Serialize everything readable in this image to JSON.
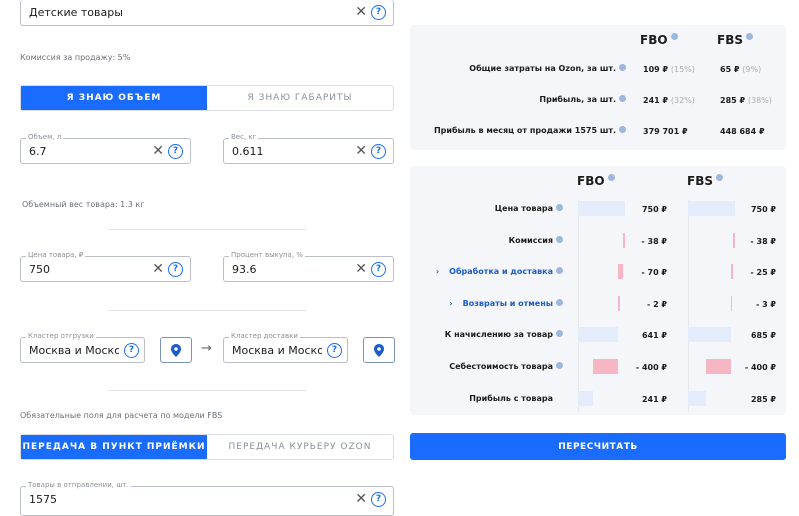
{
  "form": {
    "category": {
      "value": "Детские товары"
    },
    "commission_note": "Комиссия за продажу: 5%",
    "size_mode": {
      "options": [
        "Я ЗНАЮ ОБЪЕМ",
        "Я ЗНАЮ ГАБАРИТЫ"
      ],
      "selected": 0
    },
    "volume": {
      "label": "Объем, л",
      "value": "6.7"
    },
    "weight": {
      "label": "Вес, кг",
      "value": "0.611"
    },
    "volume_weight_note": "Объемный вес товара: 1.3 кг",
    "price": {
      "label": "Цена товара, ₽",
      "value": "750"
    },
    "buyout": {
      "label": "Процент выкупа, %",
      "value": "93.6"
    },
    "ship_cluster": {
      "label": "Кластер отгрузки",
      "value": "Москва и Московская"
    },
    "delivery_cluster": {
      "label": "Кластер доставки",
      "value": "Москва и Московская"
    },
    "fbs_note": "Обязательные поля для расчета по модели FBS",
    "fbs_mode": {
      "options": [
        "ПЕРЕДАЧА В ПУНКТ ПРИЁМКИ",
        "ПЕРЕДАЧА КУРЬЕРУ OZON"
      ],
      "selected": 0
    },
    "quantity": {
      "label": "Товары в отправлении, шт.",
      "value": "1575"
    }
  },
  "summary": {
    "columns": [
      "FBO",
      "FBS"
    ],
    "rows": [
      {
        "label": "Общие затраты на Ozon, за шт.",
        "fbo": "109 ₽",
        "fbo_pct": "(15%)",
        "fbs": "65 ₽",
        "fbs_pct": "(9%)"
      },
      {
        "label": "Прибыль, за шт.",
        "fbo": "241 ₽",
        "fbo_pct": "(32%)",
        "fbs": "285 ₽",
        "fbs_pct": "(38%)"
      },
      {
        "label": "Прибыль в месяц от продажи 1575 шт.",
        "fbo": "379 701 ₽",
        "fbo_pct": "",
        "fbs": "448 684 ₽",
        "fbs_pct": ""
      }
    ]
  },
  "breakdown": {
    "columns": [
      "FBO",
      "FBS"
    ],
    "max": 750,
    "rows": [
      {
        "label": "Цена товара",
        "type": "total",
        "link": false,
        "fbo": 750,
        "fbs": 750,
        "fbo_text": "750 ₽",
        "fbs_text": "750 ₽",
        "info": true
      },
      {
        "label": "Комиссия",
        "type": "minus",
        "link": false,
        "fbo": 38,
        "fbs": 38,
        "fbo_text": "- 38 ₽",
        "fbs_text": "- 38 ₽",
        "info": true
      },
      {
        "label": "Обработка и доставка",
        "type": "minus",
        "link": true,
        "fbo": 70,
        "fbs": 25,
        "fbo_text": "- 70 ₽",
        "fbs_text": "- 25 ₽",
        "info": true
      },
      {
        "label": "Возвраты и отмены",
        "type": "minus",
        "link": true,
        "fbo": 2,
        "fbs": 3,
        "fbo_text": "- 2 ₽",
        "fbs_text": "- 3 ₽",
        "info": true
      },
      {
        "label": "К начислению за товар",
        "type": "total",
        "link": false,
        "fbo": 641,
        "fbs": 685,
        "fbo_text": "641 ₽",
        "fbs_text": "685 ₽",
        "info": true
      },
      {
        "label": "Себестоимость товара",
        "type": "minus",
        "link": false,
        "fbo": 400,
        "fbs": 400,
        "fbo_text": "- 400 ₽",
        "fbs_text": "- 400 ₽",
        "info": true
      },
      {
        "label": "Прибыль с товара",
        "type": "total",
        "link": false,
        "fbo": 241,
        "fbs": 285,
        "fbo_text": "241 ₽",
        "fbs_text": "285 ₽",
        "info": false
      }
    ]
  },
  "recalc_button": "ПЕРЕСЧИТАТЬ",
  "colors": {
    "accent": "#1a6cff",
    "bar_positive": "#e3ecfb",
    "bar_negative": "#f6b6c4",
    "panel": "#f4f6fa"
  }
}
